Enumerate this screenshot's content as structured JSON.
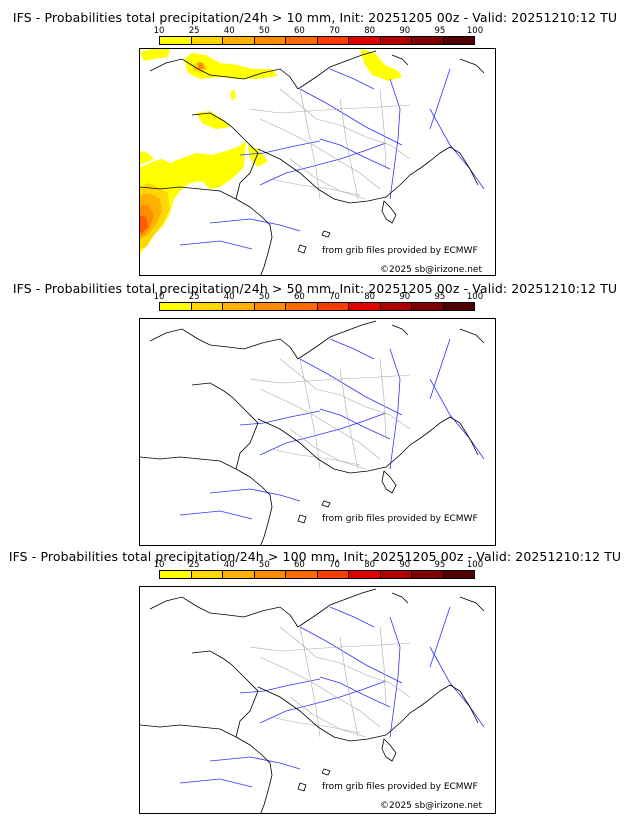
{
  "panels": [
    {
      "title": "IFS - Probabilities total precipitation/24h > 10 mm, Init: 20251205 00z - Valid: 20251210:12 TU",
      "credit_source": "from grib files provided by ECMWF",
      "credit_copyright": "©2025 sb@irizone.net",
      "has_precip": true
    },
    {
      "title": "IFS - Probabilities total precipitation/24h > 50 mm, Init: 20251205 00z - Valid: 20251210:12 TU",
      "credit_source": "from grib files provided by ECMWF",
      "credit_copyright": "",
      "has_precip": false
    },
    {
      "title": "IFS - Probabilities total precipitation/24h > 100 mm, Init: 20251205 00z - Valid: 20251210:12 TU",
      "credit_source": "from grib files provided by ECMWF",
      "credit_copyright": "©2025 sb@irizone.net",
      "has_precip": false
    }
  ],
  "colorbar": {
    "labels": [
      "10",
      "25",
      "40",
      "50",
      "60",
      "70",
      "80",
      "90",
      "95",
      "100"
    ],
    "colors": [
      "#ffff00",
      "#ffd700",
      "#ffb000",
      "#ff8c00",
      "#ff6a00",
      "#ff3c00",
      "#e00000",
      "#b00000",
      "#800000",
      "#500000"
    ]
  },
  "map_colors": {
    "coast": "#000000",
    "rivers": "#3333ff",
    "borders": "#aaaaaa"
  }
}
